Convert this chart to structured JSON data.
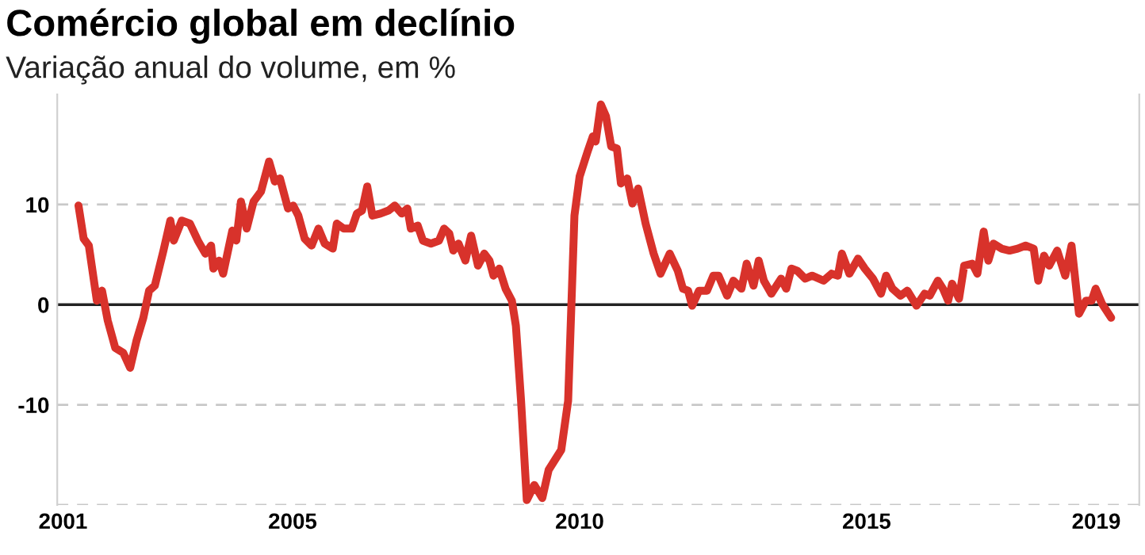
{
  "chart_data": {
    "type": "line",
    "title": "Comércio global em declínio",
    "subtitle": "Variação anual do volume, em %",
    "xlim": [
      2000.9,
      2019.75
    ],
    "xticks": [
      2001,
      2005,
      2010,
      2015,
      2019
    ],
    "ylim": [
      -20,
      21
    ],
    "yticks": [
      10,
      0,
      -10,
      {
        "value": -20,
        "label": null
      }
    ],
    "grid": "y",
    "line_style": "solid",
    "ref_lines": [
      {
        "axis": "y",
        "value": 0,
        "label": null,
        "color": "#222222",
        "line_style": "solid"
      }
    ],
    "series": [
      {
        "color": "#d8322b",
        "x": [
          2001.27,
          2001.36,
          2001.45,
          2001.59,
          2001.68,
          2001.78,
          2001.91,
          2002.05,
          2002.17,
          2002.28,
          2002.4,
          2002.5,
          2002.6,
          2002.75,
          2002.87,
          2002.93,
          2003.07,
          2003.21,
          2003.35,
          2003.48,
          2003.58,
          2003.62,
          2003.72,
          2003.79,
          2003.95,
          2004.02,
          2004.1,
          2004.2,
          2004.32,
          2004.45,
          2004.59,
          2004.69,
          2004.78,
          2004.92,
          2005.01,
          2005.1,
          2005.21,
          2005.33,
          2005.45,
          2005.56,
          2005.7,
          2005.77,
          2005.89,
          2006.03,
          2006.12,
          2006.21,
          2006.3,
          2006.39,
          2006.53,
          2006.67,
          2006.78,
          2006.9,
          2007.0,
          2007.06,
          2007.18,
          2007.27,
          2007.41,
          2007.55,
          2007.64,
          2007.73,
          2007.8,
          2007.89,
          2008.01,
          2008.11,
          2008.23,
          2008.34,
          2008.43,
          2008.5,
          2008.6,
          2008.71,
          2008.82,
          2008.89,
          2008.98,
          2009.08,
          2009.21,
          2009.35,
          2009.46,
          2009.68,
          2009.8,
          2009.91,
          2010.0,
          2010.14,
          2010.23,
          2010.28,
          2010.37,
          2010.46,
          2010.55,
          2010.65,
          2010.72,
          2010.83,
          2010.92,
          2011.02,
          2011.15,
          2011.29,
          2011.41,
          2011.57,
          2011.71,
          2011.8,
          2011.89,
          2011.96,
          2012.08,
          2012.22,
          2012.33,
          2012.42,
          2012.57,
          2012.68,
          2012.82,
          2012.91,
          2013.03,
          2013.12,
          2013.21,
          2013.34,
          2013.51,
          2013.6,
          2013.69,
          2013.79,
          2013.93,
          2014.05,
          2014.25,
          2014.39,
          2014.5,
          2014.57,
          2014.7,
          2014.85,
          2014.97,
          2015.11,
          2015.25,
          2015.34,
          2015.45,
          2015.59,
          2015.71,
          2015.87,
          2016.01,
          2016.1,
          2016.24,
          2016.33,
          2016.42,
          2016.49,
          2016.61,
          2016.7,
          2016.84,
          2016.93,
          2016.98,
          2017.04,
          2017.12,
          2017.21,
          2017.35,
          2017.49,
          2017.63,
          2017.77,
          2017.91,
          2017.99,
          2018.09,
          2018.18,
          2018.32,
          2018.46,
          2018.57,
          2018.7,
          2018.82,
          2018.92,
          2018.99,
          2019.1,
          2019.26
        ],
        "values": [
          9.9,
          6.6,
          5.9,
          0.4,
          1.4,
          -1.6,
          -4.3,
          -4.8,
          -6.3,
          -3.6,
          -1.3,
          1.4,
          1.9,
          5.4,
          8.4,
          6.4,
          8.4,
          8.1,
          6.4,
          5.1,
          5.9,
          3.6,
          4.4,
          3.1,
          7.4,
          6.4,
          10.3,
          7.6,
          10.3,
          11.3,
          14.3,
          12.3,
          12.6,
          9.6,
          9.9,
          8.9,
          6.6,
          5.9,
          7.6,
          6.1,
          5.6,
          8.1,
          7.6,
          7.6,
          9.1,
          9.4,
          11.8,
          8.9,
          9.1,
          9.4,
          9.9,
          9.1,
          9.6,
          7.6,
          7.9,
          6.4,
          6.1,
          6.4,
          7.6,
          7.1,
          5.4,
          6.1,
          4.4,
          6.9,
          3.9,
          5.1,
          4.4,
          2.9,
          3.6,
          1.6,
          0.4,
          -2.1,
          -9.6,
          -19.5,
          -18.0,
          -19.3,
          -16.5,
          -14.5,
          -9.6,
          8.9,
          12.8,
          15.3,
          16.8,
          16.3,
          20.0,
          18.8,
          15.8,
          15.6,
          12.1,
          12.6,
          10.1,
          11.6,
          8.1,
          5.1,
          3.1,
          5.1,
          3.4,
          1.6,
          1.4,
          -0.1,
          1.4,
          1.4,
          2.9,
          2.9,
          0.9,
          2.4,
          1.6,
          4.1,
          1.9,
          4.4,
          2.4,
          1.1,
          2.6,
          1.6,
          3.6,
          3.4,
          2.6,
          2.9,
          2.4,
          3.1,
          2.9,
          5.1,
          3.1,
          4.6,
          3.6,
          2.6,
          1.1,
          2.9,
          1.6,
          0.9,
          1.4,
          -0.1,
          1.1,
          0.9,
          2.4,
          1.6,
          0.4,
          2.1,
          0.6,
          3.9,
          4.1,
          3.1,
          5.1,
          7.3,
          4.4,
          6.1,
          5.6,
          5.4,
          5.6,
          5.9,
          5.6,
          2.4,
          4.9,
          3.9,
          5.4,
          2.9,
          5.9,
          -0.9,
          0.4,
          0.4,
          1.6,
          0.1,
          -1.3
        ]
      }
    ]
  }
}
